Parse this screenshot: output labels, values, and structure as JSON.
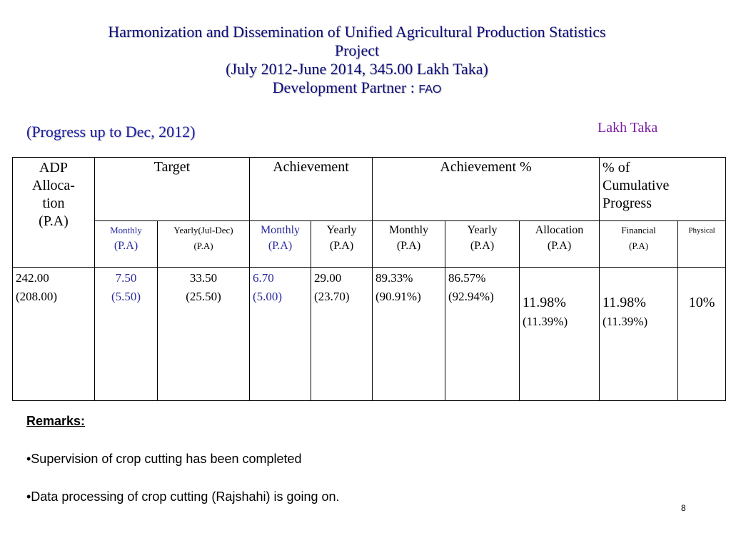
{
  "title": {
    "line1": "Harmonization and Dissemination of Unified Agricultural Production Statistics",
    "line2": "Project",
    "line3": "(July 2012-June 2014, 345.00 Lakh Taka)",
    "dev_partner_label": "Development Partner :",
    "dev_partner_value": "FAO"
  },
  "progress_note": "(Progress up to Dec, 2012)",
  "unit_label": "Lakh Taka",
  "table": {
    "headers": {
      "adp": [
        "ADP",
        "Alloca-",
        "tion",
        "(P.A)"
      ],
      "target": "Target",
      "achievement": "Achievement",
      "achievement_pct": "Achievement %",
      "cumulative": [
        "% of",
        "Cumulative",
        "Progress"
      ]
    },
    "subheaders": {
      "target_monthly": [
        "Monthly",
        "(P.A)"
      ],
      "target_yearly": [
        "Yearly(Jul-Dec)",
        "(P.A)"
      ],
      "ach_monthly": [
        "Monthly",
        "(P.A)"
      ],
      "ach_yearly": [
        "Yearly",
        "(P.A)"
      ],
      "pct_monthly": [
        "Monthly",
        "(P.A)"
      ],
      "pct_yearly": [
        "Yearly",
        "(P.A)"
      ],
      "pct_allocation": [
        "Allocation",
        "(P.A)"
      ],
      "cum_financial": [
        "Financial",
        "(P.A)"
      ],
      "cum_physical": "Physical"
    },
    "row": {
      "adp": [
        "242.00",
        "(208.00)"
      ],
      "target_monthly": [
        "7.50",
        "(5.50)"
      ],
      "target_yearly": [
        "33.50",
        "(25.50)"
      ],
      "ach_monthly": [
        "6.70",
        "(5.00)"
      ],
      "ach_yearly": [
        "29.00",
        "(23.70)"
      ],
      "pct_monthly": [
        "89.33%",
        "(90.91%)"
      ],
      "pct_yearly": [
        "86.57%",
        "(92.94%)"
      ],
      "pct_allocation": [
        "11.98%",
        "(11.39%)"
      ],
      "cum_financial": [
        "11.98%",
        "(11.39%)"
      ],
      "cum_physical": "10%"
    }
  },
  "remarks": {
    "title": "Remarks:",
    "items": [
      "•Supervision of crop cutting has been completed",
      "•Data processing of crop cutting (Rajshahi) is going on."
    ]
  },
  "page_number": "8",
  "colors": {
    "title": "#0b0b7a",
    "progress_note": "#1a1aa6",
    "unit_label": "#7a1fa2",
    "blue_text": "#2a2a9e"
  }
}
